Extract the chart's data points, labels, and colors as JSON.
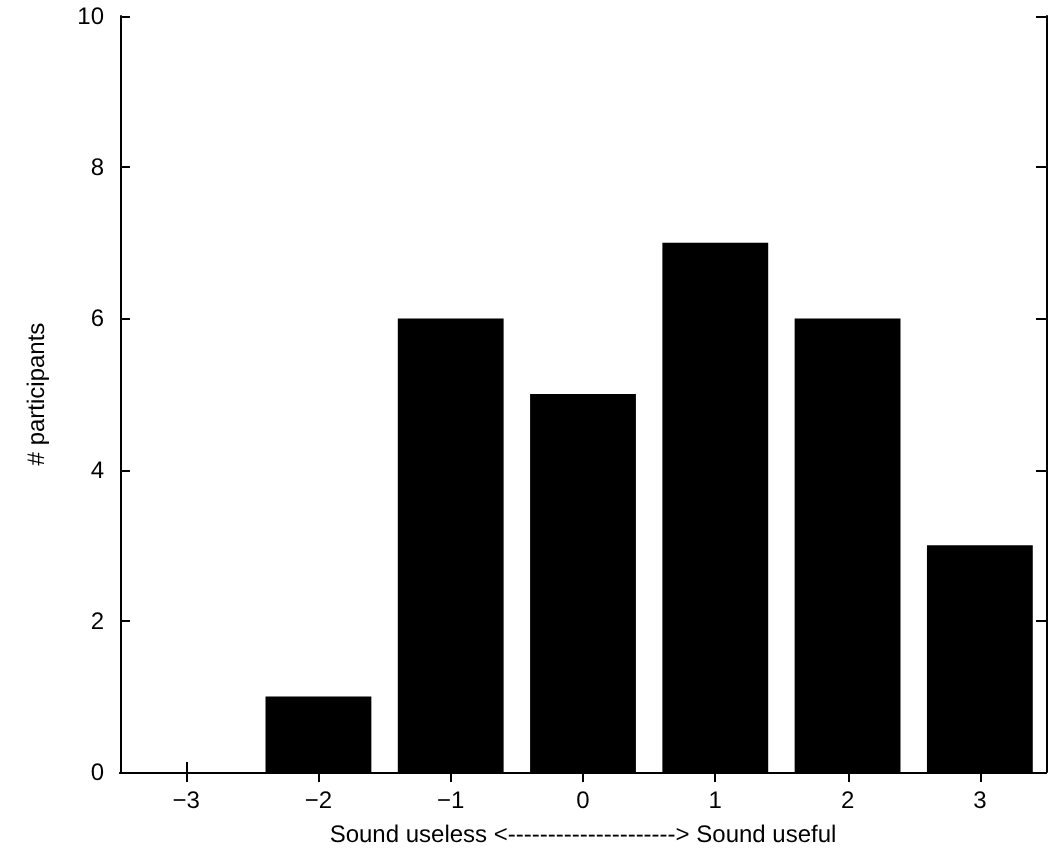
{
  "chart_data": {
    "type": "bar",
    "xlabel": "Sound useless <---------------------> Sound useful",
    "ylabel": "# participants",
    "categories": [
      "−3",
      "−2",
      "−1",
      "0",
      "1",
      "2",
      "3"
    ],
    "values": [
      0,
      1,
      6,
      5,
      7,
      6,
      3
    ],
    "color": "#000000",
    "ylim": [
      0,
      10
    ],
    "yticks": [
      0,
      2,
      4,
      6,
      8,
      10
    ],
    "grid": false
  }
}
